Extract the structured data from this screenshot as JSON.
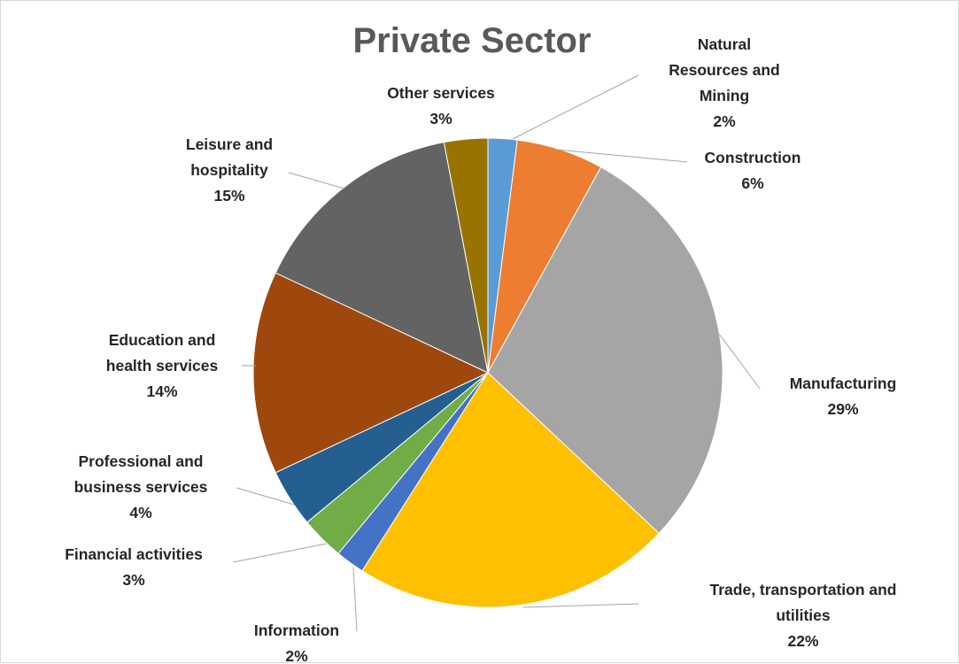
{
  "chart_data": {
    "type": "pie",
    "title": "Private Sector",
    "start_angle_deg": 0,
    "direction": "clockwise",
    "slices": [
      {
        "label": [
          "Natural",
          "Resources and",
          "Mining"
        ],
        "value": 2,
        "pct_label": "2%",
        "color": "#5b9bd5"
      },
      {
        "label": [
          "Construction"
        ],
        "value": 6,
        "pct_label": "6%",
        "color": "#ed7d31"
      },
      {
        "label": [
          "Manufacturing"
        ],
        "value": 29,
        "pct_label": "29%",
        "color": "#a5a5a5"
      },
      {
        "label": [
          "Trade, transportation and",
          "utilities"
        ],
        "value": 22,
        "pct_label": "22%",
        "color": "#ffc000"
      },
      {
        "label": [
          "Information"
        ],
        "value": 2,
        "pct_label": "2%",
        "color": "#4472c4"
      },
      {
        "label": [
          "Financial activities"
        ],
        "value": 3,
        "pct_label": "3%",
        "color": "#70ad47"
      },
      {
        "label": [
          "Professional and",
          "business services"
        ],
        "value": 4,
        "pct_label": "4%",
        "color": "#255e91"
      },
      {
        "label": [
          "Education and",
          "health services"
        ],
        "value": 14,
        "pct_label": "14%",
        "color": "#9e480e"
      },
      {
        "label": [
          "Leisure and",
          "hospitality"
        ],
        "value": 15,
        "pct_label": "15%",
        "color": "#636363"
      },
      {
        "label": [
          "Other services"
        ],
        "value": 3,
        "pct_label": "3%",
        "color": "#997300"
      }
    ]
  }
}
